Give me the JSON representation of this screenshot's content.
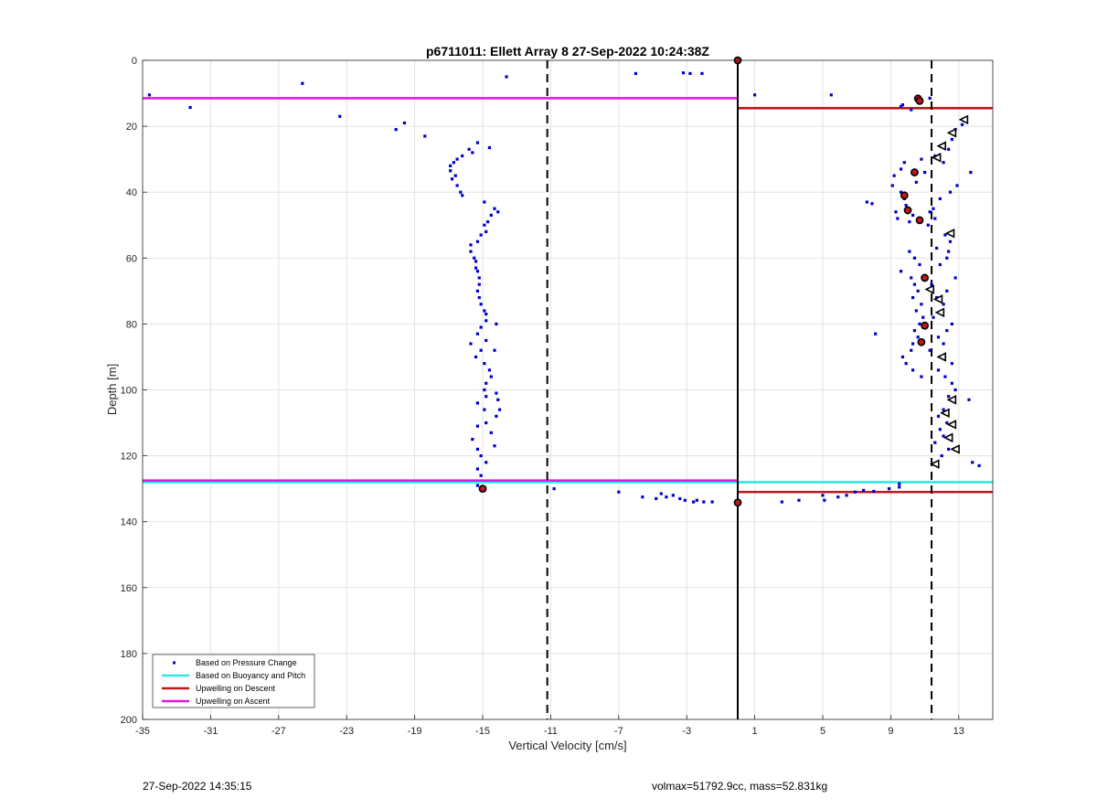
{
  "footer": {
    "timestamp": "27-Sep-2022 14:35:15",
    "info": "volmax=51792.9cc, mass=52.831kg"
  },
  "chart_data": {
    "type": "scatter",
    "title": "p6711011: Ellett Array 8 27-Sep-2022 10:24:38Z",
    "xlabel": "Vertical Velocity [cm/s]",
    "ylabel": "Depth [m]",
    "xlim": [
      -35,
      15
    ],
    "ylim": [
      0,
      200
    ],
    "y_reversed": true,
    "grid": true,
    "xticks": [
      -35,
      -31,
      -27,
      -23,
      -19,
      -15,
      -11,
      -7,
      -3,
      1,
      5,
      9,
      13
    ],
    "yticks": [
      0,
      20,
      40,
      60,
      80,
      100,
      120,
      140,
      160,
      180,
      200
    ],
    "legend_position": "bottom-left",
    "legend": [
      {
        "label": "Based on Pressure Change",
        "style": "dots",
        "color": "#0000cc"
      },
      {
        "label": "Based on Buoyancy and Pitch",
        "style": "line",
        "color": "#33e6e6"
      },
      {
        "label": "Upwelling on Descent",
        "style": "line",
        "color": "#c0181c"
      },
      {
        "label": "Upwelling on Ascent",
        "style": "line",
        "color": "#e019e0"
      }
    ],
    "vertical_lines": [
      {
        "x": -11.2,
        "style": "dashed",
        "color": "#000000"
      },
      {
        "x": 0,
        "style": "solid",
        "color": "#000000"
      },
      {
        "x": 11.4,
        "style": "dashed",
        "color": "#000000"
      }
    ],
    "horizontal_lines": [
      {
        "name": "Upwelling on Ascent",
        "y": 11.5,
        "x_from": -35,
        "x_to": 0,
        "color": "#e019e0"
      },
      {
        "name": "Upwelling on Descent",
        "y": 14.5,
        "x_from": 0,
        "x_to": 15,
        "color": "#c0181c"
      },
      {
        "name": "Based on Buoyancy and Pitch",
        "y": 128,
        "x_from": -35,
        "x_to": 15,
        "color": "#33e6e6"
      },
      {
        "name": "Upwelling on Ascent",
        "y": 127.5,
        "x_from": -35,
        "x_to": 0,
        "color": "#e019e0"
      },
      {
        "name": "Upwelling on Descent",
        "y": 131,
        "x_from": 0,
        "x_to": 15,
        "color": "#c0181c"
      }
    ],
    "pressure_change_points": [
      [
        -34.6,
        10.5
      ],
      [
        -32.2,
        14.3
      ],
      [
        -25.6,
        7
      ],
      [
        -23.4,
        17
      ],
      [
        -19.6,
        19
      ],
      [
        -20.1,
        21
      ],
      [
        -18.4,
        23
      ],
      [
        -13.6,
        5
      ],
      [
        -6,
        4
      ],
      [
        -3.2,
        3.8
      ],
      [
        -2.8,
        4
      ],
      [
        -2.1,
        4
      ],
      [
        1,
        10.5
      ],
      [
        5.5,
        10.5
      ],
      [
        11.3,
        11.5
      ],
      [
        9.7,
        13.5
      ],
      [
        10.2,
        15
      ],
      [
        9.6,
        14
      ],
      [
        10.8,
        12
      ],
      [
        -15.3,
        25
      ],
      [
        -14.6,
        26.5
      ],
      [
        -15.8,
        27
      ],
      [
        -15.6,
        28
      ],
      [
        -16.2,
        29
      ],
      [
        -16.5,
        30
      ],
      [
        -16.7,
        31
      ],
      [
        -16.9,
        32
      ],
      [
        -16.9,
        33.5
      ],
      [
        -16.6,
        35
      ],
      [
        -16.8,
        36
      ],
      [
        -16.5,
        38
      ],
      [
        -16.3,
        40
      ],
      [
        -16.2,
        41
      ],
      [
        -14.9,
        43
      ],
      [
        -14.3,
        45
      ],
      [
        -14.1,
        46
      ],
      [
        -14.5,
        47
      ],
      [
        -14.7,
        49
      ],
      [
        -14.9,
        50
      ],
      [
        -14.8,
        52
      ],
      [
        -15.1,
        53
      ],
      [
        -15.3,
        55
      ],
      [
        -15.7,
        56
      ],
      [
        -15.7,
        58
      ],
      [
        -15.5,
        60
      ],
      [
        -15.4,
        61
      ],
      [
        -15.4,
        63
      ],
      [
        -15.3,
        64
      ],
      [
        -15.2,
        66
      ],
      [
        -15.2,
        68
      ],
      [
        -15.3,
        70
      ],
      [
        -15.2,
        72
      ],
      [
        -15.1,
        74
      ],
      [
        -14.9,
        76
      ],
      [
        -14.8,
        77
      ],
      [
        -14.8,
        79
      ],
      [
        -14.2,
        80
      ],
      [
        -15.1,
        81
      ],
      [
        -15.3,
        83
      ],
      [
        -14.8,
        85
      ],
      [
        -15.7,
        86
      ],
      [
        -15.1,
        88
      ],
      [
        -14.3,
        88
      ],
      [
        -15.4,
        90
      ],
      [
        -14.9,
        92
      ],
      [
        -14.6,
        94
      ],
      [
        -14.5,
        96
      ],
      [
        -14.8,
        98
      ],
      [
        -14.9,
        100
      ],
      [
        -14.8,
        102
      ],
      [
        -14.2,
        101
      ],
      [
        -14.1,
        103
      ],
      [
        -15.3,
        104
      ],
      [
        -14.9,
        106
      ],
      [
        -14,
        106
      ],
      [
        -14.2,
        108
      ],
      [
        -14.8,
        110
      ],
      [
        -15.3,
        111
      ],
      [
        -14.5,
        113
      ],
      [
        -15.6,
        115
      ],
      [
        -14.3,
        117
      ],
      [
        -15.3,
        118
      ],
      [
        -15.1,
        120
      ],
      [
        -14.8,
        122
      ],
      [
        -15.3,
        124
      ],
      [
        -15.1,
        126
      ],
      [
        -15.3,
        129
      ],
      [
        -14.9,
        130.5
      ],
      [
        -10.8,
        130
      ],
      [
        -7,
        131
      ],
      [
        -5.6,
        132.5
      ],
      [
        -4.8,
        133
      ],
      [
        -4.5,
        131.5
      ],
      [
        -4.2,
        132.5
      ],
      [
        -3.8,
        132
      ],
      [
        -3.4,
        133
      ],
      [
        -3.1,
        133.5
      ],
      [
        -2.6,
        134
      ],
      [
        -2.4,
        133.5
      ],
      [
        -2,
        134
      ],
      [
        -1.5,
        134
      ],
      [
        2.6,
        134
      ],
      [
        3.6,
        133.5
      ],
      [
        5,
        132
      ],
      [
        5.1,
        133.5
      ],
      [
        5.9,
        132.5
      ],
      [
        6.4,
        132
      ],
      [
        6.9,
        131
      ],
      [
        7.4,
        130.5
      ],
      [
        8,
        130.8
      ],
      [
        8.9,
        130
      ],
      [
        9.5,
        128.5
      ],
      [
        9.5,
        129.5
      ],
      [
        13.8,
        122
      ],
      [
        14.2,
        123
      ],
      [
        13.4,
        18
      ],
      [
        13.2,
        19.5
      ],
      [
        12.8,
        21
      ],
      [
        12.6,
        24
      ],
      [
        12.1,
        26
      ],
      [
        12.4,
        27
      ],
      [
        11.6,
        29
      ],
      [
        13.7,
        34
      ],
      [
        12.1,
        31
      ],
      [
        11,
        34
      ],
      [
        12.9,
        38
      ],
      [
        12.5,
        40
      ],
      [
        11.9,
        42
      ],
      [
        11.5,
        45
      ],
      [
        11.3,
        46
      ],
      [
        11.6,
        48
      ],
      [
        11.2,
        50
      ],
      [
        12.2,
        53
      ],
      [
        12.5,
        55
      ],
      [
        11.7,
        57
      ],
      [
        12.4,
        58
      ],
      [
        12.3,
        60
      ],
      [
        11.9,
        62
      ],
      [
        12.8,
        66
      ],
      [
        11.4,
        68
      ],
      [
        12.3,
        70
      ],
      [
        11.7,
        72
      ],
      [
        12.1,
        74
      ],
      [
        11.5,
        78
      ],
      [
        12.6,
        80
      ],
      [
        12.3,
        82
      ],
      [
        11.8,
        84
      ],
      [
        12.1,
        86
      ],
      [
        11.3,
        88
      ],
      [
        12.6,
        92
      ],
      [
        11.8,
        94
      ],
      [
        12.2,
        96
      ],
      [
        12.6,
        98
      ],
      [
        12.8,
        100
      ],
      [
        12.4,
        102
      ],
      [
        13.6,
        103
      ],
      [
        12.1,
        106
      ],
      [
        11.8,
        108
      ],
      [
        12.3,
        110
      ],
      [
        11.9,
        112
      ],
      [
        12.1,
        114
      ],
      [
        11.6,
        116
      ],
      [
        12.4,
        118
      ],
      [
        12,
        120
      ],
      [
        9.1,
        38
      ],
      [
        9.6,
        40
      ],
      [
        9.8,
        42
      ],
      [
        7.6,
        43
      ],
      [
        7.9,
        43.5
      ],
      [
        9.9,
        44
      ],
      [
        9.3,
        46
      ],
      [
        9.4,
        48
      ],
      [
        10.3,
        47
      ],
      [
        10.1,
        49
      ],
      [
        9.6,
        64
      ],
      [
        10.2,
        66
      ],
      [
        10.4,
        68
      ],
      [
        10.6,
        70
      ],
      [
        10.3,
        72
      ],
      [
        10.8,
        74
      ],
      [
        10.5,
        76
      ],
      [
        10.9,
        78
      ],
      [
        10.7,
        80
      ],
      [
        10.4,
        82
      ],
      [
        8.1,
        83
      ],
      [
        10.6,
        84
      ],
      [
        10.3,
        86
      ],
      [
        10.2,
        88
      ],
      [
        9.7,
        90
      ],
      [
        9.9,
        92
      ],
      [
        10.3,
        94
      ],
      [
        10.8,
        96
      ],
      [
        9.6,
        33
      ],
      [
        10.5,
        37
      ],
      [
        9.2,
        35
      ],
      [
        10.8,
        30
      ],
      [
        10.1,
        58
      ],
      [
        10.4,
        60
      ],
      [
        10.7,
        62
      ],
      [
        9.8,
        31
      ]
    ],
    "buoyancy_pitch_points": [
      [
        10.6,
        11.6
      ],
      [
        10.7,
        12.3
      ],
      [
        10.4,
        34
      ],
      [
        9.8,
        41
      ],
      [
        10,
        45.5
      ],
      [
        10.7,
        48.5
      ],
      [
        11,
        66
      ],
      [
        11,
        80.5
      ],
      [
        10.8,
        85.5
      ],
      [
        0,
        134.2
      ],
      [
        0,
        0
      ],
      [
        -15,
        130
      ]
    ],
    "ascent_markers": [
      [
        13.3,
        18
      ],
      [
        12.6,
        22
      ],
      [
        12,
        26
      ],
      [
        11.7,
        29.5
      ],
      [
        12.5,
        52.5
      ],
      [
        11.3,
        69.5
      ],
      [
        11.8,
        72.5
      ],
      [
        11.9,
        76.5
      ],
      [
        12,
        90
      ],
      [
        12.6,
        103
      ],
      [
        12.2,
        107
      ],
      [
        12.6,
        110.5
      ],
      [
        12.4,
        114.5
      ],
      [
        12.8,
        118
      ],
      [
        11.6,
        122.5
      ]
    ]
  }
}
